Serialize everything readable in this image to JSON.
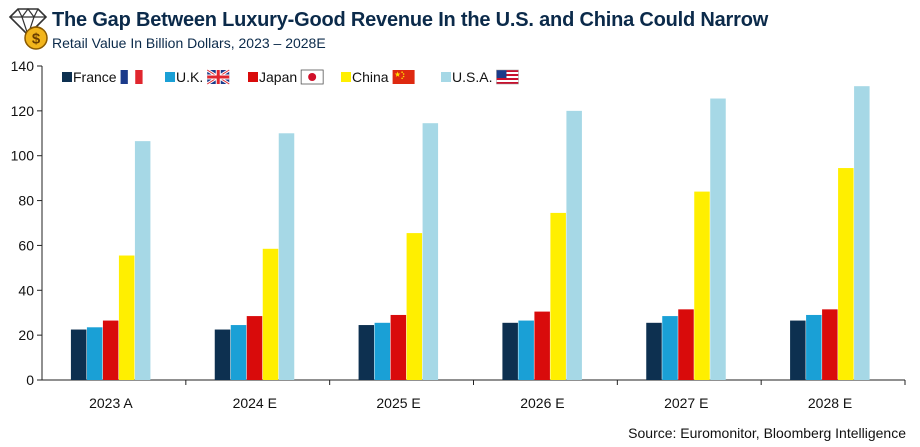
{
  "header": {
    "title": "The Gap Between Luxury-Good Revenue In the U.S. and China Could Narrow",
    "subtitle": "Retail Value In Billion Dollars, 2023 – 2028E"
  },
  "logo": {
    "icon": "diamond-money-bag-icon",
    "symbol": "$"
  },
  "source": "Source: Euromonitor, Bloomberg Intelligence",
  "chart_data": {
    "type": "bar",
    "categories": [
      "2023 A",
      "2024 E",
      "2025 E",
      "2026 E",
      "2027 E",
      "2028 E"
    ],
    "series": [
      {
        "name": "France",
        "color": "#0d3050",
        "flag": "france-flag-icon",
        "values": [
          22.5,
          22.5,
          24.5,
          25.5,
          25.5,
          26.5
        ]
      },
      {
        "name": "U.K.",
        "color": "#1aa0d6",
        "flag": "uk-flag-icon",
        "values": [
          23.5,
          24.5,
          25.5,
          26.5,
          28.5,
          29
        ]
      },
      {
        "name": "Japan",
        "color": "#d90b0b",
        "flag": "japan-flag-icon",
        "values": [
          26.5,
          28.5,
          29,
          30.5,
          31.5,
          31.5
        ]
      },
      {
        "name": "China",
        "color": "#ffef00",
        "flag": "china-flag-icon",
        "values": [
          55.5,
          58.5,
          65.5,
          74.5,
          84,
          94.5
        ]
      },
      {
        "name": "U.S.A.",
        "color": "#a6d8e6",
        "flag": "usa-flag-icon",
        "values": [
          106.5,
          110,
          114.5,
          120,
          125.5,
          131
        ]
      }
    ],
    "yticks": [
      0,
      20,
      40,
      60,
      80,
      100,
      120,
      140
    ],
    "ylim": [
      0,
      140
    ],
    "grid": false,
    "legend": "top-left",
    "xlabel": "",
    "ylabel": ""
  }
}
